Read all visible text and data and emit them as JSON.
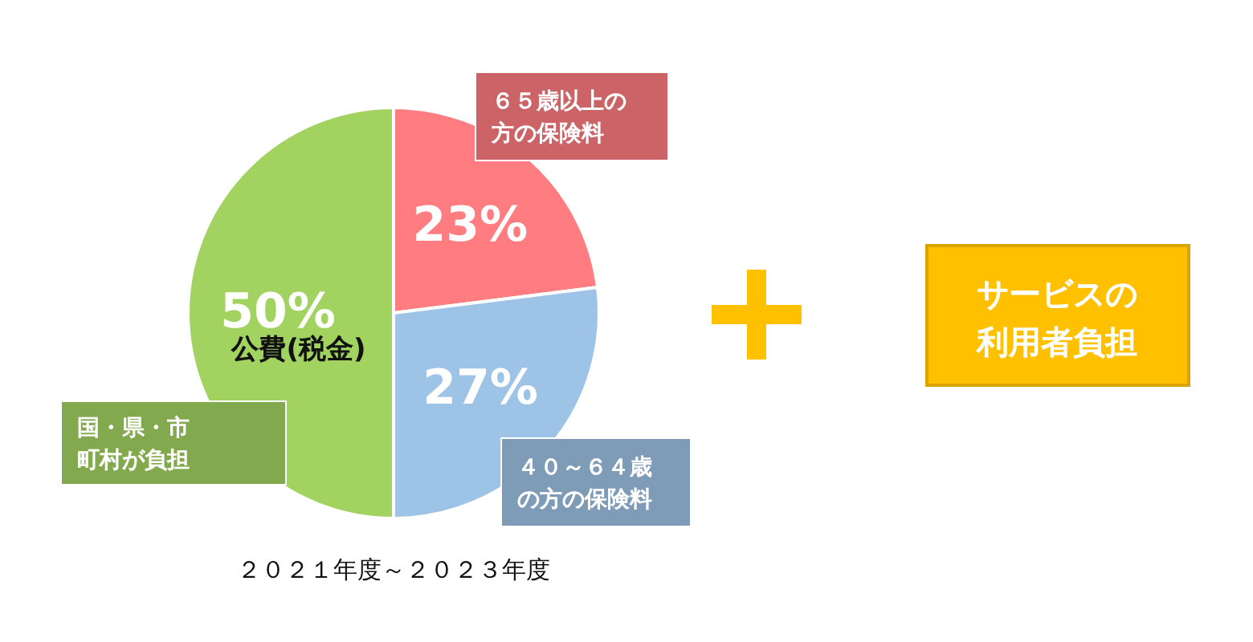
{
  "chart_data": {
    "type": "pie",
    "title": "２０２１年度～２０２３年度",
    "categories": [
      "６５歳以上の方の保険料",
      "４０～６４歳の方の保険料",
      "国・県・市町村が負担"
    ],
    "values": [
      23,
      27,
      50
    ],
    "colors": [
      "#ff7c80",
      "#9dc3e6",
      "#a2d360"
    ],
    "value_labels": [
      "23%",
      "27%",
      "50%"
    ],
    "annotations": [
      "公費(税金)",
      "サービスの利用者負担"
    ]
  }
}
